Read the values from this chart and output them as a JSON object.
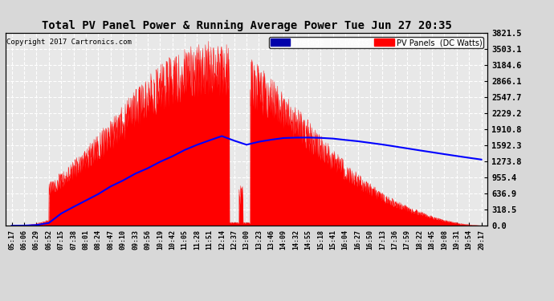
{
  "title": "Total PV Panel Power & Running Average Power Tue Jun 27 20:35",
  "copyright": "Copyright 2017 Cartronics.com",
  "legend_avg": "Average  (DC Watts)",
  "legend_pv": "PV Panels  (DC Watts)",
  "yticks": [
    0.0,
    318.5,
    636.9,
    955.4,
    1273.8,
    1592.3,
    1910.8,
    2229.2,
    2547.7,
    2866.1,
    3184.6,
    3503.1,
    3821.5
  ],
  "ymax": 3821.5,
  "ymin": 0.0,
  "bg_color": "#d8d8d8",
  "plot_bg_color": "#e8e8e8",
  "pv_fill_color": "#ff0000",
  "avg_line_color": "#0000ff",
  "grid_color": "#ffffff",
  "xtick_labels": [
    "05:17",
    "06:06",
    "06:29",
    "06:52",
    "07:15",
    "07:38",
    "08:01",
    "08:24",
    "08:47",
    "09:10",
    "09:33",
    "09:56",
    "10:19",
    "10:42",
    "11:05",
    "11:28",
    "11:51",
    "12:14",
    "12:37",
    "13:00",
    "13:23",
    "13:46",
    "14:09",
    "14:32",
    "14:55",
    "15:18",
    "15:41",
    "16:04",
    "16:27",
    "16:50",
    "17:13",
    "17:36",
    "17:59",
    "18:22",
    "18:45",
    "19:08",
    "19:31",
    "19:54",
    "20:17"
  ]
}
